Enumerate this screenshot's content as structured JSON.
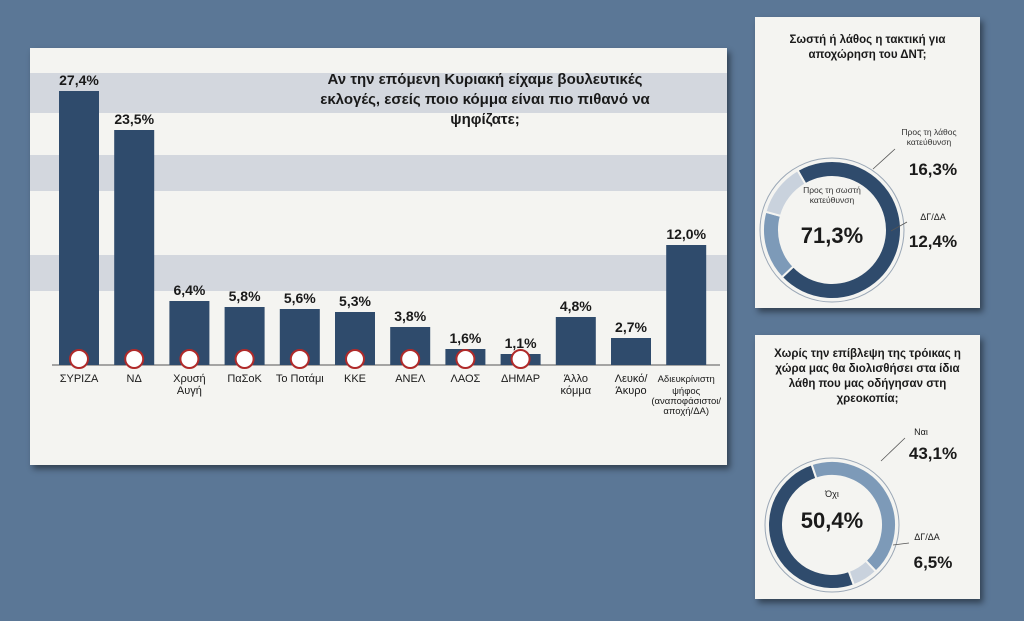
{
  "colors": {
    "page_bg": "#5b7796",
    "bar": "#2f4b6c",
    "band": "#d3d7de",
    "donut_main": "#2f4b6c",
    "donut_second": "#7d9ab8",
    "donut_third": "#c9d2dd"
  },
  "chart_data": [
    {
      "type": "bar",
      "title": "Αν την επόμενη Κυριακή είχαμε βουλευτικές εκλογές, εσείς ποιο κόμμα είναι πιο πιθανό να ψηφίζατε;",
      "categories": [
        "ΣΥΡΙΖΑ",
        "ΝΔ",
        "Χρυσή Αυγή",
        "ΠαΣοΚ",
        "Το Ποτάμι",
        "ΚΚΕ",
        "ΑΝΕΛ",
        "ΛΑΟΣ",
        "ΔΗΜΑΡ",
        "Άλλο κόμμα",
        "Λευκό/ Άκυρο",
        "Αδιευκρίνιστη ψήφος (αναποφάσιστοι/ αποχή/ΔΑ)"
      ],
      "values": [
        27.4,
        23.5,
        6.4,
        5.8,
        5.6,
        5.3,
        3.8,
        1.6,
        1.1,
        4.8,
        2.7,
        12.0
      ],
      "value_labels": [
        "27,4%",
        "23,5%",
        "6,4%",
        "5,8%",
        "5,6%",
        "5,3%",
        "3,8%",
        "1,6%",
        "1,1%",
        "4,8%",
        "2,7%",
        "12,0%"
      ],
      "party_icons": [
        "syriza-logo-icon",
        "nd-logo-icon",
        "golden-dawn-logo-icon",
        "pasok-sun-icon",
        "potami-logo-icon",
        "kke-hammer-sickle-icon",
        "anel-logo-icon",
        "laos-logo-icon",
        "dimar-logo-icon",
        "",
        "",
        ""
      ],
      "ylim": [
        0,
        30
      ],
      "grid": false
    },
    {
      "type": "pie",
      "title": "Σωστή ή λάθος η τακτική για αποχώρηση του ΔΝΤ;",
      "slices": [
        {
          "label": "Προς τη σωστή κατεύθυνση",
          "value": 71.3,
          "value_label": "71,3%",
          "color": "#2f4b6c"
        },
        {
          "label": "Προς τη λάθος κατεύθυνση",
          "value": 16.3,
          "value_label": "16,3%",
          "color": "#7d9ab8"
        },
        {
          "label": "ΔΓ/ΔΑ",
          "value": 12.4,
          "value_label": "12,4%",
          "color": "#c9d2dd"
        }
      ]
    },
    {
      "type": "pie",
      "title": "Χωρίς την επίβλεψη της τρόικας η χώρα μας θα διολισθήσει στα ίδια λάθη που μας οδήγησαν στη χρεοκοπία;",
      "slices": [
        {
          "label": "Όχι",
          "value": 50.4,
          "value_label": "50,4%",
          "color": "#2f4b6c"
        },
        {
          "label": "Ναι",
          "value": 43.1,
          "value_label": "43,1%",
          "color": "#7d9ab8"
        },
        {
          "label": "ΔΓ/ΔΑ",
          "value": 6.5,
          "value_label": "6,5%",
          "color": "#c9d2dd"
        }
      ]
    }
  ]
}
